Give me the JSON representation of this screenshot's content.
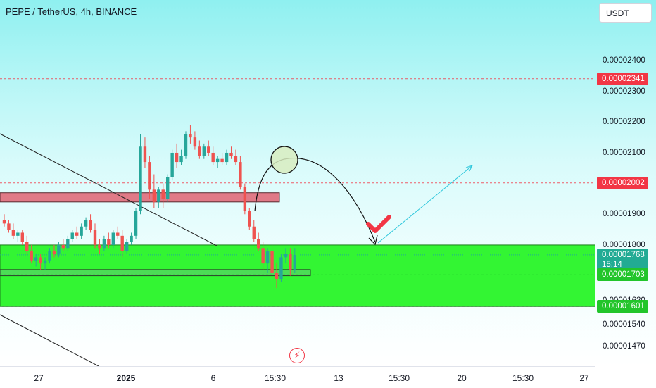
{
  "header": {
    "title": "PEPE / TetherUS, 4h, BINANCE"
  },
  "toolbar": {
    "currency_label": "USDT"
  },
  "colors": {
    "up": "#26a69a",
    "down": "#ef5350",
    "resistance_zone": "#e07a87",
    "support_zone": "#33f533",
    "accent_red": "#f23645",
    "accent_green": "#22c52b"
  },
  "icons": {
    "bolt": "lightning-icon"
  },
  "chart_data": {
    "type": "candlestick",
    "title": "PEPE / TetherUS, 4h, BINANCE",
    "y_ticks": [
      {
        "value": 2.4e-05,
        "label": "0.00002400"
      },
      {
        "value": 2.3e-05,
        "label": "0.00002300"
      },
      {
        "value": 2.2e-05,
        "label": "0.00002200"
      },
      {
        "value": 2.1e-05,
        "label": "0.00002100"
      },
      {
        "value": 1.9e-05,
        "label": "0.00001900"
      },
      {
        "value": 1.8e-05,
        "label": "0.00001800"
      },
      {
        "value": 1.62e-05,
        "label": "0.00001620"
      },
      {
        "value": 1.54e-05,
        "label": "0.00001540"
      },
      {
        "value": 1.47e-05,
        "label": "0.00001470"
      }
    ],
    "x_ticks": [
      "27",
      "2025",
      "6",
      "15:30",
      "13",
      "15:30",
      "20",
      "15:30",
      "27"
    ],
    "price_tags": [
      {
        "value": 2.341e-05,
        "label": "0.00002341",
        "color": "#f23645"
      },
      {
        "value": 2.002e-05,
        "label": "0.00002002",
        "color": "#f23645"
      },
      {
        "value": 1.768e-05,
        "label": "0.00001768",
        "countdown": "15:14",
        "color": "#22ab94"
      },
      {
        "value": 1.703e-05,
        "label": "0.00001703",
        "color": "#22c52b"
      },
      {
        "value": 1.601e-05,
        "label": "0.00001601",
        "color": "#22c52b"
      }
    ],
    "zones": [
      {
        "kind": "resistance",
        "from": 1.94e-05,
        "to": 1.97e-05
      },
      {
        "kind": "support",
        "from": 1.6e-05,
        "to": 1.8e-05
      },
      {
        "kind": "support-inner",
        "from": 1.7e-05,
        "to": 1.72e-05
      }
    ],
    "candles": [
      [
        1.88e-05,
        1.9e-05,
        1.86e-05,
        1.87e-05
      ],
      [
        1.87e-05,
        1.88e-05,
        1.84e-05,
        1.85e-05
      ],
      [
        1.85e-05,
        1.87e-05,
        1.82e-05,
        1.83e-05
      ],
      [
        1.83e-05,
        1.85e-05,
        1.81e-05,
        1.84e-05
      ],
      [
        1.84e-05,
        1.85e-05,
        1.8e-05,
        1.81e-05
      ],
      [
        1.81e-05,
        1.83e-05,
        1.77e-05,
        1.78e-05
      ],
      [
        1.78e-05,
        1.8e-05,
        1.74e-05,
        1.75e-05
      ],
      [
        1.75e-05,
        1.77e-05,
        1.73e-05,
        1.76e-05
      ],
      [
        1.76e-05,
        1.77e-05,
        1.72e-05,
        1.74e-05
      ],
      [
        1.74e-05,
        1.76e-05,
        1.72e-05,
        1.75e-05
      ],
      [
        1.75e-05,
        1.79e-05,
        1.74e-05,
        1.78e-05
      ],
      [
        1.78e-05,
        1.8e-05,
        1.76e-05,
        1.77e-05
      ],
      [
        1.77e-05,
        1.81e-05,
        1.76e-05,
        1.8e-05
      ],
      [
        1.8e-05,
        1.82e-05,
        1.78e-05,
        1.79e-05
      ],
      [
        1.79e-05,
        1.83e-05,
        1.78e-05,
        1.82e-05
      ],
      [
        1.82e-05,
        1.85e-05,
        1.81e-05,
        1.84e-05
      ],
      [
        1.84e-05,
        1.86e-05,
        1.82e-05,
        1.83e-05
      ],
      [
        1.83e-05,
        1.87e-05,
        1.82e-05,
        1.86e-05
      ],
      [
        1.86e-05,
        1.89e-05,
        1.85e-05,
        1.88e-05
      ],
      [
        1.88e-05,
        1.9e-05,
        1.84e-05,
        1.85e-05
      ],
      [
        1.85e-05,
        1.87e-05,
        1.79e-05,
        1.8e-05
      ],
      [
        1.8e-05,
        1.82e-05,
        1.77e-05,
        1.79e-05
      ],
      [
        1.79e-05,
        1.83e-05,
        1.78e-05,
        1.82e-05
      ],
      [
        1.82e-05,
        1.84e-05,
        1.79e-05,
        1.8e-05
      ],
      [
        1.8e-05,
        1.85e-05,
        1.79e-05,
        1.84e-05
      ],
      [
        1.84e-05,
        1.86e-05,
        1.82e-05,
        1.83e-05
      ],
      [
        1.83e-05,
        1.85e-05,
        1.76e-05,
        1.78e-05
      ],
      [
        1.78e-05,
        1.82e-05,
        1.77e-05,
        1.81e-05
      ],
      [
        1.81e-05,
        1.84e-05,
        1.8e-05,
        1.83e-05
      ],
      [
        1.83e-05,
        1.92e-05,
        1.82e-05,
        1.91e-05
      ],
      [
        1.91e-05,
        2.16e-05,
        1.9e-05,
        2.12e-05
      ],
      [
        2.12e-05,
        2.15e-05,
        2.05e-05,
        2.07e-05
      ],
      [
        2.07e-05,
        2.09e-05,
        1.95e-05,
        1.98e-05
      ],
      [
        1.98e-05,
        2.03e-05,
        1.92e-05,
        1.94e-05
      ],
      [
        1.94e-05,
        1.99e-05,
        1.92e-05,
        1.98e-05
      ],
      [
        1.98e-05,
        2e-05,
        1.92e-05,
        1.95e-05
      ],
      [
        1.95e-05,
        2.03e-05,
        1.94e-05,
        2.02e-05
      ],
      [
        2.02e-05,
        2.11e-05,
        2.01e-05,
        2.1e-05
      ],
      [
        2.1e-05,
        2.13e-05,
        2.05e-05,
        2.07e-05
      ],
      [
        2.07e-05,
        2.11e-05,
        2.06e-05,
        2.09e-05
      ],
      [
        2.09e-05,
        2.17e-05,
        2.08e-05,
        2.16e-05
      ],
      [
        2.16e-05,
        2.19e-05,
        2.13e-05,
        2.15e-05
      ],
      [
        2.15e-05,
        2.17e-05,
        2.11e-05,
        2.12e-05
      ],
      [
        2.12e-05,
        2.14e-05,
        2.08e-05,
        2.09e-05
      ],
      [
        2.09e-05,
        2.13e-05,
        2.08e-05,
        2.12e-05
      ],
      [
        2.12e-05,
        2.14e-05,
        2.09e-05,
        2.1e-05
      ],
      [
        2.1e-05,
        2.12e-05,
        2.06e-05,
        2.07e-05
      ],
      [
        2.07e-05,
        2.09e-05,
        2.05e-05,
        2.08e-05
      ],
      [
        2.08e-05,
        2.1e-05,
        2.06e-05,
        2.07e-05
      ],
      [
        2.07e-05,
        2.11e-05,
        2.06e-05,
        2.1e-05
      ],
      [
        2.1e-05,
        2.12e-05,
        2.08e-05,
        2.09e-05
      ],
      [
        2.09e-05,
        2.11e-05,
        2.06e-05,
        2.07e-05
      ],
      [
        2.07e-05,
        2.09e-05,
        1.98e-05,
        1.99e-05
      ],
      [
        1.99e-05,
        2e-05,
        1.9e-05,
        1.91e-05
      ],
      [
        1.91e-05,
        1.92e-05,
        1.85e-05,
        1.86e-05
      ],
      [
        1.86e-05,
        1.88e-05,
        1.81e-05,
        1.82e-05
      ],
      [
        1.82e-05,
        1.84e-05,
        1.78e-05,
        1.79e-05
      ],
      [
        1.79e-05,
        1.81e-05,
        1.72e-05,
        1.74e-05
      ],
      [
        1.74e-05,
        1.79e-05,
        1.71e-05,
        1.78e-05
      ],
      [
        1.78e-05,
        1.8e-05,
        1.7e-05,
        1.71e-05
      ],
      [
        1.71e-05,
        1.74e-05,
        1.66e-05,
        1.69e-05
      ],
      [
        1.69e-05,
        1.77e-05,
        1.68e-05,
        1.76e-05
      ],
      [
        1.76e-05,
        1.79e-05,
        1.74e-05,
        1.77e-05
      ],
      [
        1.77e-05,
        1.79e-05,
        1.7e-05,
        1.72e-05
      ],
      [
        1.72e-05,
        1.79e-05,
        1.71e-05,
        1.768e-05
      ]
    ]
  }
}
